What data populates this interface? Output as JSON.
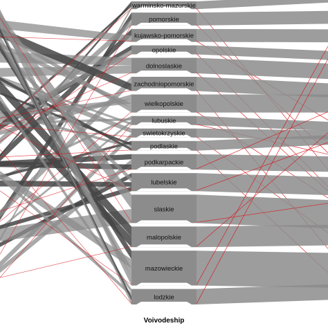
{
  "chart_data": {
    "type": "parallel-sets",
    "xlabel": "Voivodeship",
    "categories": [
      "warminsko-mazurskie",
      "pomorskie",
      "kujawsko-pomorskie",
      "opolskie",
      "dolnoslaskie",
      "zachodniopomorskie",
      "wielkopolskie",
      "lubuskie",
      "swietokrzyskie",
      "podlaskie",
      "podkarpackie",
      "lubelskie",
      "slaskie",
      "malopolskie",
      "mazowieckie",
      "lodzkie"
    ],
    "values": [
      12,
      20,
      20,
      14,
      24,
      22,
      28,
      14,
      14,
      15,
      24,
      28,
      44,
      32,
      54,
      24
    ],
    "colors": {
      "ribbon": "#8c8c8c",
      "ribbon_dark": "#454545",
      "highlight": "#d9151c",
      "background": "#ffffff"
    }
  }
}
